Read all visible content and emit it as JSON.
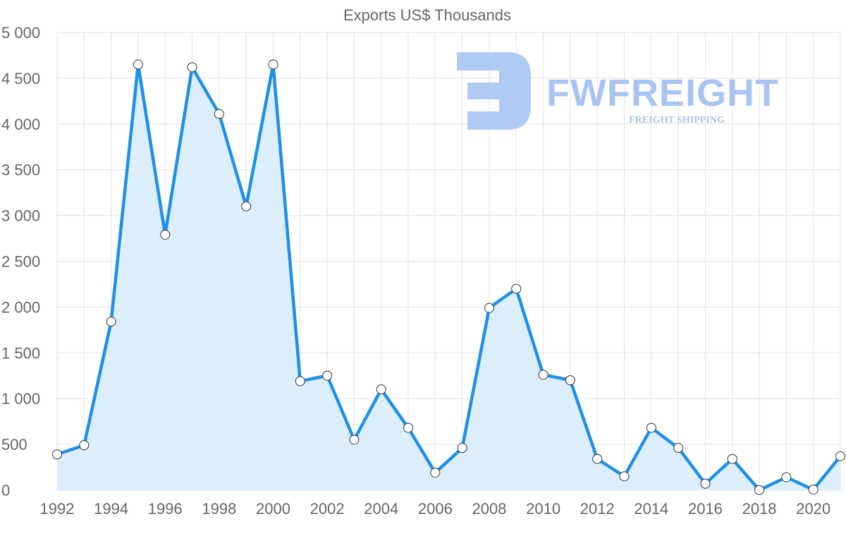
{
  "chart_data": {
    "type": "area",
    "title": "Exports US$ Thousands",
    "xlabel": "",
    "ylabel": "",
    "x": [
      1992,
      1993,
      1994,
      1995,
      1996,
      1997,
      1998,
      1999,
      2000,
      2001,
      2002,
      2003,
      2004,
      2005,
      2006,
      2007,
      2008,
      2009,
      2010,
      2011,
      2012,
      2013,
      2014,
      2015,
      2016,
      2017,
      2018,
      2019,
      2020,
      2021
    ],
    "series": [
      {
        "name": "Exports",
        "color": "#1e90e8",
        "fill": "#dcedfc",
        "values": [
          390,
          490,
          1840,
          4650,
          2790,
          4620,
          4110,
          3100,
          4650,
          1190,
          1250,
          550,
          1100,
          680,
          190,
          460,
          1990,
          2200,
          1260,
          1200,
          340,
          150,
          680,
          460,
          70,
          340,
          0,
          140,
          5,
          370
        ]
      }
    ],
    "ylim": [
      0,
      5000
    ],
    "yticks": [
      0,
      500,
      1000,
      1500,
      2000,
      2500,
      3000,
      3500,
      4000,
      4500,
      5000
    ],
    "ytick_labels": [
      "0",
      "500",
      "1 000",
      "1 500",
      "2 000",
      "2 500",
      "3 000",
      "3 500",
      "4 000",
      "4 500",
      "5 000"
    ],
    "xtick_labels": [
      "1992",
      "1994",
      "1996",
      "1998",
      "2000",
      "2002",
      "2004",
      "2006",
      "2008",
      "2010",
      "2012",
      "2014",
      "2016",
      "2018",
      "2020"
    ],
    "grid": true,
    "legend": "none"
  },
  "watermark": {
    "name": "FWFREIGHT",
    "tagline": "FREIGHT SHIPPING",
    "color": "#a9c4f2"
  }
}
